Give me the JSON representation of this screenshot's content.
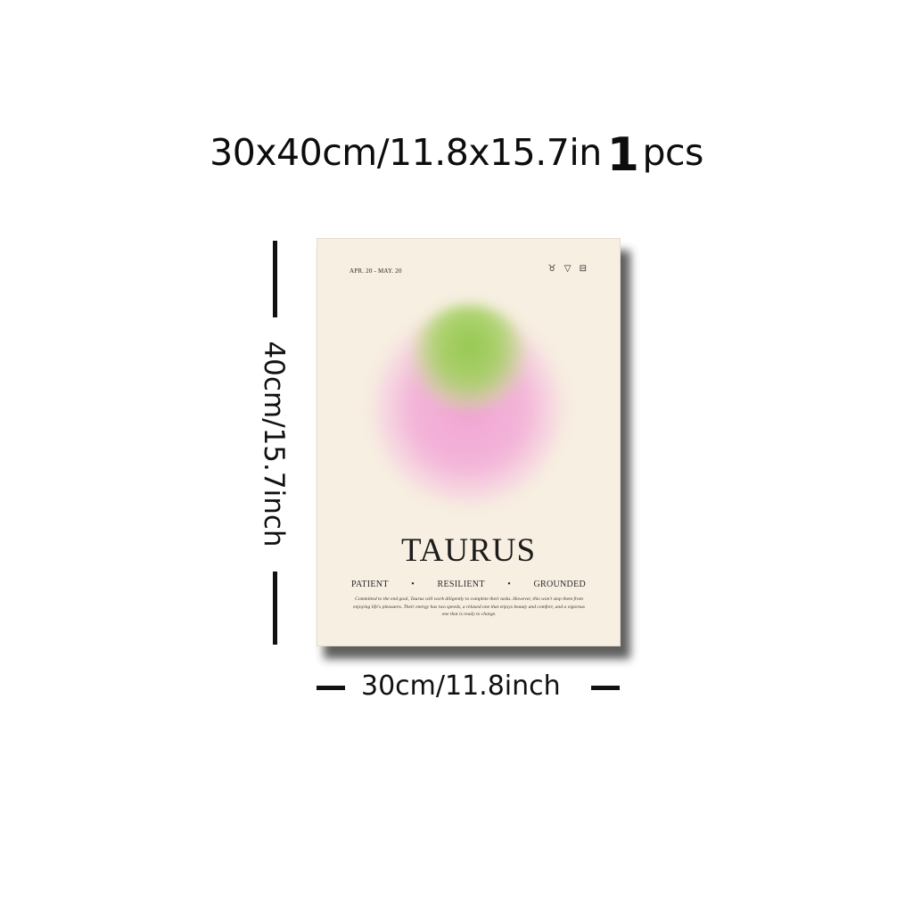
{
  "headline": {
    "size": "30x40cm/11.8x15.7in",
    "quantity": "1",
    "unit": "pcs"
  },
  "dimensions": {
    "height_label": "40cm/15.7inch",
    "width_label": "30cm/11.8inch"
  },
  "poster": {
    "dates": "APR. 20 - MAY. 20",
    "symbols": "♉ ▽ ⊟",
    "title": "TAURUS",
    "traits": [
      "PATIENT",
      "RESILIENT",
      "GROUNDED"
    ],
    "description": "Committed to the end goal, Taurus will work diligently to complete their tasks. However, this won't stop them from enjoying life's pleasures. Their energy has two speeds, a relaxed one that enjoys beauty and comfort, and a vigorous one that is ready to charge.",
    "colors": {
      "background": "#f7efe1",
      "orb_pink": "#f0a0d2",
      "orb_green": "#96c850"
    }
  }
}
